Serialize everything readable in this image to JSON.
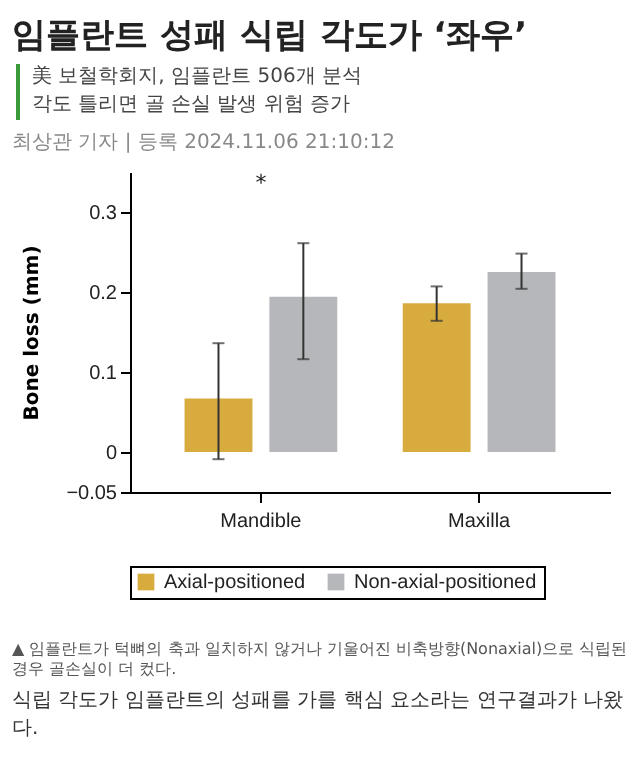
{
  "chart_data": {
    "type": "bar",
    "title": "임플란트 성패 식립 각도가 ‘좌우’",
    "subtitle": "美 보철학회지, 임플란트 506개 분석\n각도 틀리면 골 손실 발생 위험 증가",
    "ylabel": "Bone loss (mm)",
    "categories": [
      "Mandible",
      "Maxilla"
    ],
    "series": [
      {
        "name": "Axial-positioned",
        "color": "#d8ab3f",
        "values": [
          0.067,
          0.186
        ],
        "errors": [
          [
            -0.009,
            0.136
          ],
          [
            0.164,
            0.207
          ]
        ]
      },
      {
        "name": "Non-axial-positioned",
        "color": "#b6b7ba",
        "values": [
          0.194,
          0.225
        ],
        "errors": [
          [
            0.116,
            0.261
          ],
          [
            0.204,
            0.248
          ]
        ]
      }
    ],
    "ylim": [
      -0.05,
      0.35
    ],
    "yticks": [
      {
        "value": -0.05,
        "label": "−0.05"
      },
      0,
      0.1,
      0.2,
      0.3
    ],
    "grid": false,
    "legend": "bottom",
    "annotations": [
      "최상관 기자 | 등록 2024.11.06 21:10:12",
      "*",
      "▲ 임플란트가 턱뼈의 축과 일치하지 않거나 기울어진 비축방향(Nonaxial)으로 식립된 경우 골손실이 더 컸다.",
      "식립 각도가 임플란트의 성패를 가를 핵심 요소라는 연구결과가 나왔다."
    ]
  }
}
